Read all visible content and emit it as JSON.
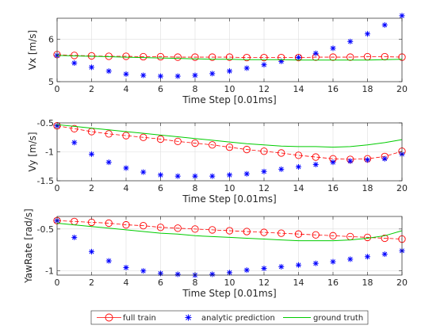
{
  "chart_data": [
    {
      "type": "line",
      "xlabel": "Time Step [0.01ms]",
      "ylabel": "Vx [m/s]",
      "xlim": [
        0,
        20
      ],
      "ylim": [
        5,
        6.5
      ],
      "xticks": [
        "0",
        "2",
        "4",
        "6",
        "8",
        "10",
        "12",
        "14",
        "16",
        "18",
        "20"
      ],
      "yticks": [
        "5",
        "6"
      ],
      "grid": true,
      "x": [
        0,
        1,
        2,
        3,
        4,
        5,
        6,
        7,
        8,
        9,
        10,
        11,
        12,
        13,
        14,
        15,
        16,
        17,
        18,
        19,
        20
      ],
      "series": [
        {
          "name": "full train",
          "color": "#ff0000",
          "marker": "circle",
          "values": [
            5.64,
            5.62,
            5.61,
            5.6,
            5.6,
            5.59,
            5.59,
            5.58,
            5.58,
            5.58,
            5.58,
            5.57,
            5.57,
            5.57,
            5.57,
            5.58,
            5.58,
            5.58,
            5.59,
            5.59,
            5.58
          ]
        },
        {
          "name": "analytic prediction",
          "color": "#0000ff",
          "marker": "asterisk",
          "values": [
            5.62,
            5.44,
            5.34,
            5.25,
            5.18,
            5.15,
            5.13,
            5.13,
            5.15,
            5.19,
            5.25,
            5.32,
            5.4,
            5.48,
            5.57,
            5.67,
            5.79,
            5.95,
            6.13,
            6.34,
            6.56
          ]
        },
        {
          "name": "ground truth",
          "color": "#00cc00",
          "marker": "none",
          "values": [
            5.62,
            5.61,
            5.6,
            5.59,
            5.58,
            5.57,
            5.56,
            5.55,
            5.54,
            5.53,
            5.53,
            5.52,
            5.52,
            5.52,
            5.51,
            5.51,
            5.51,
            5.51,
            5.51,
            5.52,
            5.53
          ]
        }
      ]
    },
    {
      "type": "line",
      "xlabel": "Time Step [0.01ms]",
      "ylabel": "Vy [m/s]",
      "xlim": [
        0,
        20
      ],
      "ylim": [
        -1.5,
        -0.5
      ],
      "xticks": [
        "0",
        "2",
        "4",
        "6",
        "8",
        "10",
        "12",
        "14",
        "16",
        "18",
        "20"
      ],
      "yticks": [
        "-1.5",
        "-1",
        "-0.5"
      ],
      "grid": true,
      "x": [
        0,
        1,
        2,
        3,
        4,
        5,
        6,
        7,
        8,
        9,
        10,
        11,
        12,
        13,
        14,
        15,
        16,
        17,
        18,
        19,
        20
      ],
      "series": [
        {
          "name": "full train",
          "color": "#ff0000",
          "marker": "circle",
          "values": [
            -0.55,
            -0.6,
            -0.65,
            -0.69,
            -0.72,
            -0.75,
            -0.78,
            -0.82,
            -0.85,
            -0.88,
            -0.92,
            -0.96,
            -0.99,
            -1.02,
            -1.06,
            -1.09,
            -1.12,
            -1.13,
            -1.12,
            -1.08,
            -0.99
          ]
        },
        {
          "name": "analytic prediction",
          "color": "#0000ff",
          "marker": "asterisk",
          "values": [
            -0.55,
            -0.84,
            -1.04,
            -1.18,
            -1.28,
            -1.35,
            -1.4,
            -1.42,
            -1.42,
            -1.42,
            -1.4,
            -1.38,
            -1.34,
            -1.3,
            -1.26,
            -1.22,
            -1.18,
            -1.16,
            -1.14,
            -1.12,
            -1.04
          ]
        },
        {
          "name": "ground truth",
          "color": "#00cc00",
          "marker": "none",
          "values": [
            -0.53,
            -0.56,
            -0.59,
            -0.62,
            -0.65,
            -0.68,
            -0.71,
            -0.74,
            -0.77,
            -0.8,
            -0.83,
            -0.86,
            -0.88,
            -0.9,
            -0.91,
            -0.91,
            -0.92,
            -0.91,
            -0.88,
            -0.84,
            -0.79
          ]
        }
      ]
    },
    {
      "type": "line",
      "xlabel": "Time Step [0.01ms]",
      "ylabel": "YawRate [rad/s]",
      "xlim": [
        0,
        20
      ],
      "ylim": [
        -1.05,
        -0.35
      ],
      "xticks": [
        "0",
        "2",
        "4",
        "6",
        "8",
        "10",
        "12",
        "14",
        "16",
        "18",
        "20"
      ],
      "yticks": [
        "-1",
        "-0.5"
      ],
      "grid": true,
      "x": [
        0,
        1,
        2,
        3,
        4,
        5,
        6,
        7,
        8,
        9,
        10,
        11,
        12,
        13,
        14,
        15,
        16,
        17,
        18,
        19,
        20
      ],
      "series": [
        {
          "name": "full train",
          "color": "#ff0000",
          "marker": "circle",
          "values": [
            -0.4,
            -0.41,
            -0.42,
            -0.43,
            -0.45,
            -0.46,
            -0.48,
            -0.49,
            -0.5,
            -0.51,
            -0.52,
            -0.53,
            -0.54,
            -0.55,
            -0.56,
            -0.57,
            -0.58,
            -0.59,
            -0.6,
            -0.61,
            -0.62
          ]
        },
        {
          "name": "analytic prediction",
          "color": "#0000ff",
          "marker": "asterisk",
          "values": [
            -0.4,
            -0.6,
            -0.77,
            -0.88,
            -0.96,
            -1.0,
            -1.03,
            -1.04,
            -1.05,
            -1.04,
            -1.02,
            -0.99,
            -0.97,
            -0.95,
            -0.93,
            -0.91,
            -0.89,
            -0.86,
            -0.83,
            -0.8,
            -0.76
          ]
        },
        {
          "name": "ground truth",
          "color": "#00cc00",
          "marker": "none",
          "values": [
            -0.43,
            -0.45,
            -0.47,
            -0.49,
            -0.51,
            -0.53,
            -0.55,
            -0.56,
            -0.58,
            -0.59,
            -0.6,
            -0.61,
            -0.62,
            -0.63,
            -0.64,
            -0.64,
            -0.64,
            -0.63,
            -0.61,
            -0.58,
            -0.52
          ]
        }
      ]
    }
  ],
  "legend": {
    "placement": "bottom",
    "items": [
      {
        "label": "full train",
        "color": "#ff0000",
        "marker": "circle",
        "line": true
      },
      {
        "label": "analytic prediction",
        "color": "#0000ff",
        "marker": "asterisk",
        "line": false
      },
      {
        "label": "ground truth",
        "color": "#00cc00",
        "marker": "none",
        "line": true
      }
    ]
  }
}
